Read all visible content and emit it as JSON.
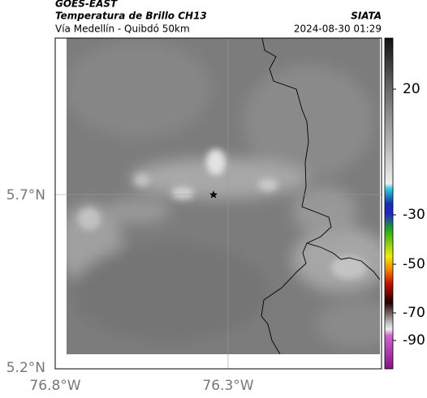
{
  "header": {
    "title": "GOES-EAST",
    "subtitle": "Temperatura de Brillo CH13",
    "region": "Vía Medellín - Quibdó 50km",
    "source": "SIATA",
    "datetime": "2024-08-30 01:29"
  },
  "map": {
    "lat_labels": [
      "5.7°N",
      "5.2°N"
    ],
    "lon_labels": [
      "76.8°W",
      "76.3°W"
    ]
  },
  "colorbar": {
    "tick_labels": [
      "20",
      "-30",
      "-50",
      "-70",
      "-90"
    ]
  }
}
